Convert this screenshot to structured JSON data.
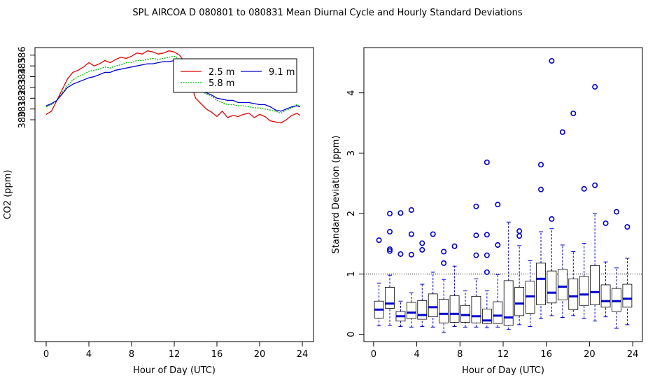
{
  "figure": {
    "title": "SPL   AIRCOA D   080801 to 080831   Mean Diurnal Cycle and Hourly Standard Deviations"
  },
  "chart_data": [
    {
      "type": "line",
      "xlabel": "Hour of Day (UTC)",
      "ylabel": "CO2 (ppm)",
      "xlim": [
        0,
        24
      ],
      "ylim": [
        359.4,
        386.7
      ],
      "xticks": [
        0,
        4,
        8,
        12,
        16,
        20,
        24
      ],
      "xtick_labels": [
        "0",
        "4",
        "8",
        "12",
        "16",
        "20",
        "24"
      ],
      "yticks": [
        380,
        381,
        382,
        383,
        384,
        385,
        386
      ],
      "ytick_labels": [
        "380",
        "381",
        "382",
        "383",
        "384",
        "385",
        "386"
      ],
      "legend": {
        "placement": "top-right",
        "entries": [
          {
            "label": "2.5 m",
            "color": "#e00000",
            "style": "solid"
          },
          {
            "label": "5.8 m",
            "color": "#00bb00",
            "style": "dotted"
          },
          {
            "label": "9.1 m",
            "color": "#0000cc",
            "style": "solid"
          }
        ]
      },
      "series": [
        {
          "name": "2.5 m",
          "color": "#e00000",
          "dash": "",
          "x": [
            0,
            0.5,
            1,
            1.5,
            2,
            2.5,
            3,
            3.5,
            4,
            4.5,
            5,
            5.5,
            6,
            6.5,
            7,
            7.5,
            8,
            8.5,
            9,
            9.5,
            10,
            10.5,
            11,
            11.5,
            12,
            12.5,
            13,
            13.5,
            14,
            14.5,
            15,
            15.5,
            16,
            16.5,
            17,
            17.5,
            18,
            18.5,
            19,
            19.5,
            20,
            20.5,
            21,
            21.5,
            22,
            22.5,
            23,
            23.5,
            23.8
          ],
          "y": [
            380.5,
            380.8,
            381.8,
            382.8,
            383.8,
            384.4,
            384.6,
            384.9,
            385.3,
            385.0,
            385.2,
            385.5,
            385.3,
            385.6,
            385.8,
            385.7,
            385.9,
            386.2,
            386.1,
            386.4,
            386.3,
            386.1,
            386.2,
            386.4,
            386.3,
            386.0,
            385.3,
            383.5,
            382.0,
            381.5,
            381.0,
            380.7,
            380.3,
            380.8,
            380.2,
            380.4,
            380.3,
            380.5,
            380.6,
            380.2,
            380.5,
            380.3,
            379.9,
            379.8,
            379.7,
            380.0,
            380.4,
            380.6,
            380.4
          ]
        },
        {
          "name": "5.8 m",
          "color": "#00bb00",
          "dash": "2,1.5",
          "x": [
            0,
            0.5,
            1,
            1.5,
            2,
            2.5,
            3,
            3.5,
            4,
            4.5,
            5,
            5.5,
            6,
            6.5,
            7,
            7.5,
            8,
            8.5,
            9,
            9.5,
            10,
            10.5,
            11,
            11.5,
            12,
            12.5,
            13,
            13.5,
            14,
            14.5,
            15,
            15.5,
            16,
            16.5,
            17,
            17.5,
            18,
            18.5,
            19,
            19.5,
            20,
            20.5,
            21,
            21.5,
            22,
            22.5,
            23,
            23.5,
            23.8
          ],
          "y": [
            381.2,
            381.4,
            381.8,
            382.5,
            383.2,
            383.7,
            384.0,
            384.2,
            384.5,
            384.6,
            384.7,
            384.9,
            384.8,
            385.0,
            385.1,
            385.3,
            385.3,
            385.5,
            385.5,
            385.6,
            385.7,
            385.6,
            385.7,
            385.8,
            385.9,
            385.6,
            385.2,
            384.5,
            383.5,
            382.7,
            382.4,
            382.2,
            381.8,
            381.6,
            381.4,
            381.4,
            381.3,
            381.3,
            381.2,
            381.1,
            381.1,
            381.0,
            380.9,
            380.8,
            380.6,
            380.9,
            381.1,
            381.4,
            381.2
          ]
        },
        {
          "name": "9.1 m",
          "color": "#0000cc",
          "dash": "",
          "x": [
            0,
            0.5,
            1,
            1.5,
            2,
            2.5,
            3,
            3.5,
            4,
            4.5,
            5,
            5.5,
            6,
            6.5,
            7,
            7.5,
            8,
            8.5,
            9,
            9.5,
            10,
            10.5,
            11,
            11.5,
            12,
            12.5,
            13,
            13.5,
            14,
            14.5,
            15,
            15.5,
            16,
            16.5,
            17,
            17.5,
            18,
            18.5,
            19,
            19.5,
            20,
            20.5,
            21,
            21.5,
            22,
            22.5,
            23,
            23.5,
            23.8
          ],
          "y": [
            381.3,
            381.5,
            381.8,
            382.4,
            383.0,
            383.3,
            383.5,
            383.7,
            383.9,
            384.0,
            384.2,
            384.4,
            384.4,
            384.6,
            384.7,
            384.8,
            384.9,
            385.0,
            385.1,
            385.2,
            385.2,
            385.3,
            385.4,
            385.4,
            385.5,
            385.4,
            385.1,
            384.6,
            383.7,
            382.8,
            382.5,
            382.3,
            382.0,
            381.9,
            381.8,
            381.8,
            381.6,
            381.6,
            381.6,
            381.5,
            381.4,
            381.4,
            381.2,
            380.9,
            380.8,
            381.0,
            381.2,
            381.3,
            381.2
          ]
        }
      ]
    },
    {
      "type": "box",
      "xlabel": "Hour of Day (UTC)",
      "ylabel": "Standard Deviation (ppm)",
      "xlim": [
        -0.9,
        24.9
      ],
      "ylim": [
        -0.12,
        4.75
      ],
      "xticks": [
        0,
        4,
        8,
        12,
        16,
        20,
        24
      ],
      "xtick_labels": [
        "0",
        "4",
        "8",
        "12",
        "16",
        "20",
        "24"
      ],
      "yticks": [
        0,
        1,
        2,
        3,
        4
      ],
      "ytick_labels": [
        "0",
        "1",
        "2",
        "3",
        "4"
      ],
      "reference_line": 1,
      "box_color": "#0000cc",
      "boxes": [
        {
          "x": 0.5,
          "lo": 0.14,
          "q1": 0.27,
          "med": 0.41,
          "q3": 0.55,
          "hi": 0.85,
          "out": [
            1.56
          ]
        },
        {
          "x": 1.5,
          "lo": 0.15,
          "q1": 0.43,
          "med": 0.51,
          "q3": 0.78,
          "hi": 0.98,
          "out": [
            1.38,
            1.41,
            1.7,
            2.0
          ]
        },
        {
          "x": 2.5,
          "lo": 0.13,
          "q1": 0.22,
          "med": 0.3,
          "q3": 0.38,
          "hi": 0.55,
          "out": [
            1.33,
            2.01
          ]
        },
        {
          "x": 3.5,
          "lo": 0.12,
          "q1": 0.26,
          "med": 0.36,
          "q3": 0.53,
          "hi": 0.69,
          "out": [
            1.32,
            1.66,
            2.06
          ]
        },
        {
          "x": 4.5,
          "lo": 0.13,
          "q1": 0.25,
          "med": 0.32,
          "q3": 0.56,
          "hi": 0.83,
          "out": [
            1.4,
            1.51
          ]
        },
        {
          "x": 5.5,
          "lo": 0.12,
          "q1": 0.29,
          "med": 0.45,
          "q3": 0.67,
          "hi": 1.03,
          "out": [
            1.66
          ]
        },
        {
          "x": 6.5,
          "lo": 0.03,
          "q1": 0.19,
          "med": 0.34,
          "q3": 0.58,
          "hi": 0.91,
          "out": [
            1.18,
            1.37
          ]
        },
        {
          "x": 7.5,
          "lo": 0.13,
          "q1": 0.2,
          "med": 0.34,
          "q3": 0.64,
          "hi": 1.13,
          "out": [
            1.46
          ]
        },
        {
          "x": 8.5,
          "lo": 0.12,
          "q1": 0.2,
          "med": 0.32,
          "q3": 0.48,
          "hi": 0.72,
          "out": []
        },
        {
          "x": 9.5,
          "lo": 0.12,
          "q1": 0.19,
          "med": 0.3,
          "q3": 0.63,
          "hi": 0.92,
          "out": [
            1.31,
            1.64,
            2.12
          ]
        },
        {
          "x": 10.5,
          "lo": 0.11,
          "q1": 0.18,
          "med": 0.23,
          "q3": 0.42,
          "hi": 0.72,
          "out": [
            1.03,
            1.31,
            1.65,
            2.85
          ]
        },
        {
          "x": 11.5,
          "lo": 0.12,
          "q1": 0.18,
          "med": 0.31,
          "q3": 0.54,
          "hi": 0.99,
          "out": [
            1.48,
            2.15
          ]
        },
        {
          "x": 12.5,
          "lo": 0.08,
          "q1": 0.15,
          "med": 0.28,
          "q3": 0.89,
          "hi": 1.86,
          "out": []
        },
        {
          "x": 13.5,
          "lo": 0.16,
          "q1": 0.31,
          "med": 0.51,
          "q3": 0.78,
          "hi": 1.47,
          "out": [
            1.63,
            1.71
          ]
        },
        {
          "x": 14.5,
          "lo": 0.13,
          "q1": 0.35,
          "med": 0.63,
          "q3": 0.88,
          "hi": 1.22,
          "out": []
        },
        {
          "x": 15.5,
          "lo": 0.26,
          "q1": 0.49,
          "med": 0.92,
          "q3": 1.18,
          "hi": 1.7,
          "out": [
            2.4,
            2.81
          ]
        },
        {
          "x": 16.5,
          "lo": 0.31,
          "q1": 0.52,
          "med": 0.69,
          "q3": 1.05,
          "hi": 1.75,
          "out": [
            1.91,
            4.53
          ]
        },
        {
          "x": 17.5,
          "lo": 0.28,
          "q1": 0.57,
          "med": 0.79,
          "q3": 1.08,
          "hi": 1.48,
          "out": [
            3.35
          ]
        },
        {
          "x": 18.5,
          "lo": 0.31,
          "q1": 0.41,
          "med": 0.63,
          "q3": 0.92,
          "hi": 1.37,
          "out": [
            3.66
          ]
        },
        {
          "x": 19.5,
          "lo": 0.26,
          "q1": 0.48,
          "med": 0.66,
          "q3": 0.96,
          "hi": 1.51,
          "out": [
            2.41
          ]
        },
        {
          "x": 20.5,
          "lo": 0.22,
          "q1": 0.49,
          "med": 0.7,
          "q3": 1.14,
          "hi": 2.0,
          "out": [
            2.47,
            4.1
          ]
        },
        {
          "x": 21.5,
          "lo": 0.29,
          "q1": 0.45,
          "med": 0.55,
          "q3": 0.82,
          "hi": 1.2,
          "out": [
            1.84
          ]
        },
        {
          "x": 22.5,
          "lo": 0.1,
          "q1": 0.38,
          "med": 0.55,
          "q3": 0.76,
          "hi": 1.1,
          "out": [
            2.03
          ]
        },
        {
          "x": 23.5,
          "lo": 0.16,
          "q1": 0.45,
          "med": 0.59,
          "q3": 0.83,
          "hi": 1.26,
          "out": [
            1.78
          ]
        }
      ]
    }
  ]
}
